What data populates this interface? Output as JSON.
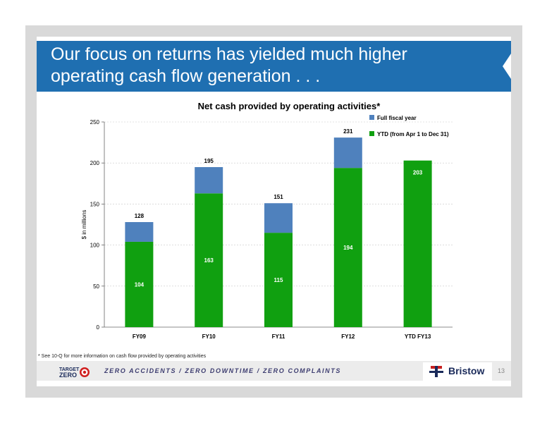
{
  "slide": {
    "title_line1": "Our focus on returns has yielded much higher",
    "title_line2": "operating cash flow generation . . .",
    "footnote": "* See 10-Q for more information on cash flow provided by operating activities",
    "slogan": "ZERO ACCIDENTS / ZERO DOWNTIME / ZERO COMPLAINTS",
    "logo_left_line1": "TARGET",
    "logo_left_line2": "ZERO",
    "logo_right_text": "Bristow",
    "page_number": "13"
  },
  "colors": {
    "banner": "#1f6fb1",
    "full_year": "#4f81bd",
    "ytd": "#10a010"
  },
  "chart_data": {
    "type": "bar",
    "stacked": true,
    "title": "Net cash provided by operating activities*",
    "ylabel": "$ in millions",
    "xlabel": "",
    "ylim": [
      0,
      250
    ],
    "yticks": [
      0,
      50,
      100,
      150,
      200,
      250
    ],
    "grid": true,
    "legend_position": "top-right",
    "categories": [
      "FY09",
      "FY10",
      "FY11",
      "FY12",
      "YTD FY13"
    ],
    "series": [
      {
        "name": "YTD (from Apr 1 to Dec 31)",
        "color": "#10a010",
        "values": [
          104,
          163,
          115,
          194,
          203
        ]
      },
      {
        "name": "Full fiscal year",
        "color": "#4f81bd",
        "values": [
          24,
          32,
          36,
          37,
          0
        ]
      }
    ],
    "totals": [
      128,
      195,
      151,
      231,
      null
    ],
    "legend_order": [
      "Full fiscal year",
      "YTD (from Apr 1 to Dec 31)"
    ]
  }
}
